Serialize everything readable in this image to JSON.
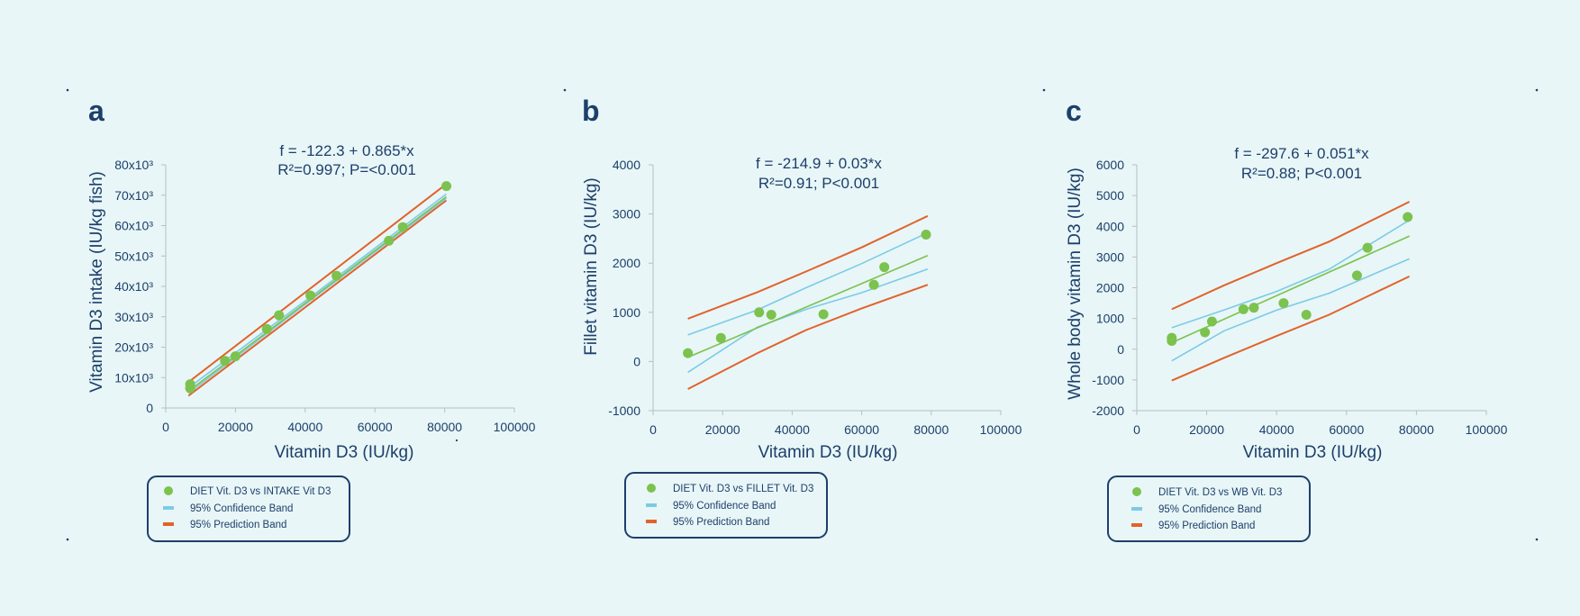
{
  "colors": {
    "background": "#e8f6f7",
    "text": "#1d3f6b",
    "data_points": "#7cc24e",
    "regression": "#7cc24e",
    "confidence": "#7ccbe6",
    "prediction": "#e2622b"
  },
  "chart_data": [
    {
      "panel": "a",
      "type": "scatter",
      "title_lines": [
        "f = -122.3 + 0.865*x",
        "R²=0.997; P=<0.001"
      ],
      "xlabel": "Vitamin D3 (IU/kg)",
      "ylabel": "Vitamin D3 intake (IU/kg fish)",
      "xlim": [
        0,
        100000
      ],
      "ylim": [
        0,
        80000
      ],
      "x_ticks": [
        0,
        20000,
        40000,
        60000,
        80000,
        100000
      ],
      "x_tick_labels": [
        "0",
        "20000",
        "40000",
        "60000",
        "80000",
        "100000"
      ],
      "y_ticks": [
        0,
        10000,
        20000,
        30000,
        40000,
        50000,
        60000,
        70000,
        80000
      ],
      "y_tick_labels": [
        "0",
        "10x10³",
        "20x10³",
        "30x10³",
        "40x10³",
        "50x10³",
        "60x10³",
        "70x10³",
        "80x10³"
      ],
      "regression": {
        "intercept": -122.3,
        "slope": 0.865,
        "x_range": [
          6500,
          80500
        ]
      },
      "confidence_band": {
        "x": [
          6500,
          43500,
          80500
        ],
        "lower": [
          4800,
          37100,
          69000
        ],
        "upper": [
          6600,
          38200,
          70400
        ]
      },
      "prediction_band": {
        "x": [
          6500,
          80500
        ],
        "lower": [
          4000,
          68300
        ],
        "upper": [
          8500,
          73700
        ]
      },
      "series": [
        {
          "name": "DIET Vit. D3 vs INTAKE Vit D3",
          "x": [
            7000,
            7000,
            17000,
            20000,
            29000,
            32500,
            41500,
            49000,
            64000,
            68000,
            80500
          ],
          "y": [
            6500,
            7800,
            15500,
            17000,
            26000,
            30500,
            37000,
            43500,
            55000,
            59500,
            73000
          ]
        }
      ],
      "legend": [
        "DIET Vit. D3 vs INTAKE Vit D3",
        "95% Confidence Band",
        "95% Prediction Band"
      ]
    },
    {
      "panel": "b",
      "type": "scatter",
      "title_lines": [
        "f = -214.9 + 0.03*x",
        "R²=0.91; P<0.001"
      ],
      "xlabel": "Vitamin D3 (IU/kg)",
      "ylabel": "Fillet vitamin D3 (IU/kg)",
      "xlim": [
        0,
        100000
      ],
      "ylim": [
        -1000,
        4000
      ],
      "x_ticks": [
        0,
        20000,
        40000,
        60000,
        80000,
        100000
      ],
      "x_tick_labels": [
        "0",
        "20000",
        "40000",
        "60000",
        "80000",
        "100000"
      ],
      "y_ticks": [
        -1000,
        0,
        1000,
        2000,
        3000,
        4000
      ],
      "y_tick_labels": [
        "-1000",
        "0",
        "1000",
        "2000",
        "3000",
        "4000"
      ],
      "regression": {
        "intercept": -214.9,
        "slope": 0.03,
        "x_range": [
          10000,
          79000
        ]
      },
      "confidence_band": {
        "x": [
          10000,
          30000,
          44000,
          60000,
          79000
        ],
        "lower": [
          -220,
          700,
          1060,
          1400,
          1880
        ],
        "upper": [
          540,
          1050,
          1500,
          1990,
          2620
        ]
      },
      "prediction_band": {
        "x": [
          10000,
          30000,
          44000,
          60000,
          79000
        ],
        "lower": [
          -560,
          170,
          640,
          1080,
          1560
        ],
        "upper": [
          870,
          1410,
          1830,
          2320,
          2960
        ]
      },
      "series": [
        {
          "name": "DIET Vit. D3 vs FILLET Vit. D3",
          "x": [
            10000,
            19500,
            30500,
            34000,
            49000,
            63500,
            66500,
            78500
          ],
          "y": [
            170,
            480,
            1000,
            950,
            960,
            1560,
            1920,
            2580
          ]
        }
      ],
      "legend": [
        "DIET Vit. D3 vs FILLET Vit. D3",
        "95% Confidence Band",
        "95% Prediction Band"
      ]
    },
    {
      "panel": "c",
      "type": "scatter",
      "title_lines": [
        "f = -297.6 + 0.051*x",
        "R²=0.88; P<0.001"
      ],
      "xlabel": "Vitamin D3 (IU/kg)",
      "ylabel": "Whole body vitamin D3 (IU/kg)",
      "xlim": [
        0,
        100000
      ],
      "ylim": [
        -2000,
        6000
      ],
      "x_ticks": [
        0,
        20000,
        40000,
        60000,
        80000,
        100000
      ],
      "x_tick_labels": [
        "0",
        "20000",
        "40000",
        "60000",
        "80000",
        "100000"
      ],
      "y_ticks": [
        -2000,
        -1000,
        0,
        1000,
        2000,
        3000,
        4000,
        5000,
        6000
      ],
      "y_tick_labels": [
        "-2000",
        "-1000",
        "0",
        "1000",
        "2000",
        "3000",
        "4000",
        "5000",
        "6000"
      ],
      "regression": {
        "intercept": -297.6,
        "slope": 0.051,
        "x_range": [
          10000,
          78000
        ]
      },
      "confidence_band": {
        "x": [
          10000,
          25000,
          40000,
          55000,
          78000
        ],
        "lower": [
          -380,
          600,
          1270,
          1820,
          2940
        ],
        "upper": [
          700,
          1280,
          1880,
          2600,
          4200
        ]
      },
      "prediction_band": {
        "x": [
          10000,
          25000,
          40000,
          55000,
          78000
        ],
        "lower": [
          -1020,
          -280,
          430,
          1120,
          2370
        ],
        "upper": [
          1300,
          2080,
          2800,
          3500,
          4800
        ]
      },
      "series": [
        {
          "name": "DIET Vit. D3 vs WB Vit. D3",
          "x": [
            10000,
            10000,
            19500,
            21500,
            30500,
            33500,
            42000,
            48500,
            63000,
            66000,
            77500
          ],
          "y": [
            270,
            370,
            550,
            900,
            1300,
            1350,
            1500,
            1120,
            2400,
            3300,
            4300
          ]
        }
      ],
      "legend": [
        "DIET Vit. D3 vs WB Vit. D3",
        "95% Confidence Band",
        "95% Prediction Band"
      ]
    }
  ]
}
